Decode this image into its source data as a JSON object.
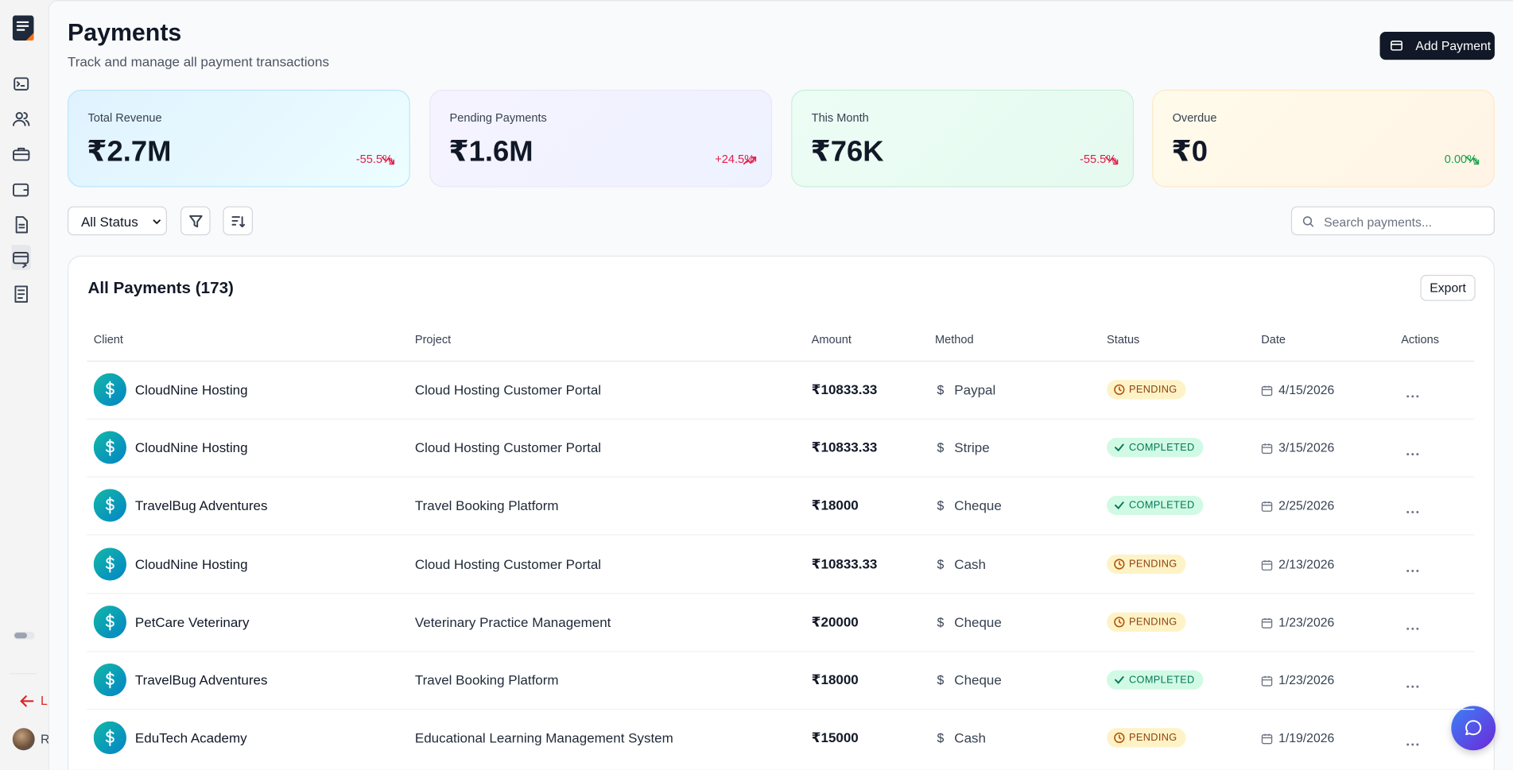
{
  "sidebar": {
    "logout_label": "L",
    "user_label": "R"
  },
  "header": {
    "title": "Payments",
    "subtitle": "Track and manage all payment transactions",
    "add_button": "Add Payment"
  },
  "stats": [
    {
      "label": "Total Revenue",
      "value": "₹2.7M",
      "change": "-55.5%",
      "trend": "down",
      "tone": "blue",
      "change_color": "#e11d48"
    },
    {
      "label": "Pending Payments",
      "value": "₹1.6M",
      "change": "+24.5%",
      "trend": "up",
      "tone": "purple",
      "change_color": "#e11d48"
    },
    {
      "label": "This Month",
      "value": "₹76K",
      "change": "-55.5%",
      "trend": "down",
      "tone": "green",
      "change_color": "#e11d48"
    },
    {
      "label": "Overdue",
      "value": "₹0",
      "change": "0.00%",
      "trend": "down",
      "tone": "orange",
      "change_color": "#16a34a"
    }
  ],
  "filters": {
    "status_select": "All Status",
    "search_placeholder": "Search payments..."
  },
  "table": {
    "title": "All Payments (173)",
    "export_button": "Export",
    "columns": [
      "Client",
      "Project",
      "Amount",
      "Method",
      "Status",
      "Date",
      "Actions"
    ],
    "rows": [
      {
        "client": "CloudNine Hosting",
        "project": "Cloud Hosting Customer Portal",
        "amount": "₹10833.33",
        "method": "Paypal",
        "status": "PENDING",
        "date": "4/15/2026"
      },
      {
        "client": "CloudNine Hosting",
        "project": "Cloud Hosting Customer Portal",
        "amount": "₹10833.33",
        "method": "Stripe",
        "status": "COMPLETED",
        "date": "3/15/2026"
      },
      {
        "client": "TravelBug Adventures",
        "project": "Travel Booking Platform",
        "amount": "₹18000",
        "method": "Cheque",
        "status": "COMPLETED",
        "date": "2/25/2026"
      },
      {
        "client": "CloudNine Hosting",
        "project": "Cloud Hosting Customer Portal",
        "amount": "₹10833.33",
        "method": "Cash",
        "status": "PENDING",
        "date": "2/13/2026"
      },
      {
        "client": "PetCare Veterinary",
        "project": "Veterinary Practice Management",
        "amount": "₹20000",
        "method": "Cheque",
        "status": "PENDING",
        "date": "1/23/2026"
      },
      {
        "client": "TravelBug Adventures",
        "project": "Travel Booking Platform",
        "amount": "₹18000",
        "method": "Cheque",
        "status": "COMPLETED",
        "date": "1/23/2026"
      },
      {
        "client": "EduTech Academy",
        "project": "Educational Learning Management System",
        "amount": "₹15000",
        "method": "Cash",
        "status": "PENDING",
        "date": "1/19/2026"
      }
    ]
  }
}
